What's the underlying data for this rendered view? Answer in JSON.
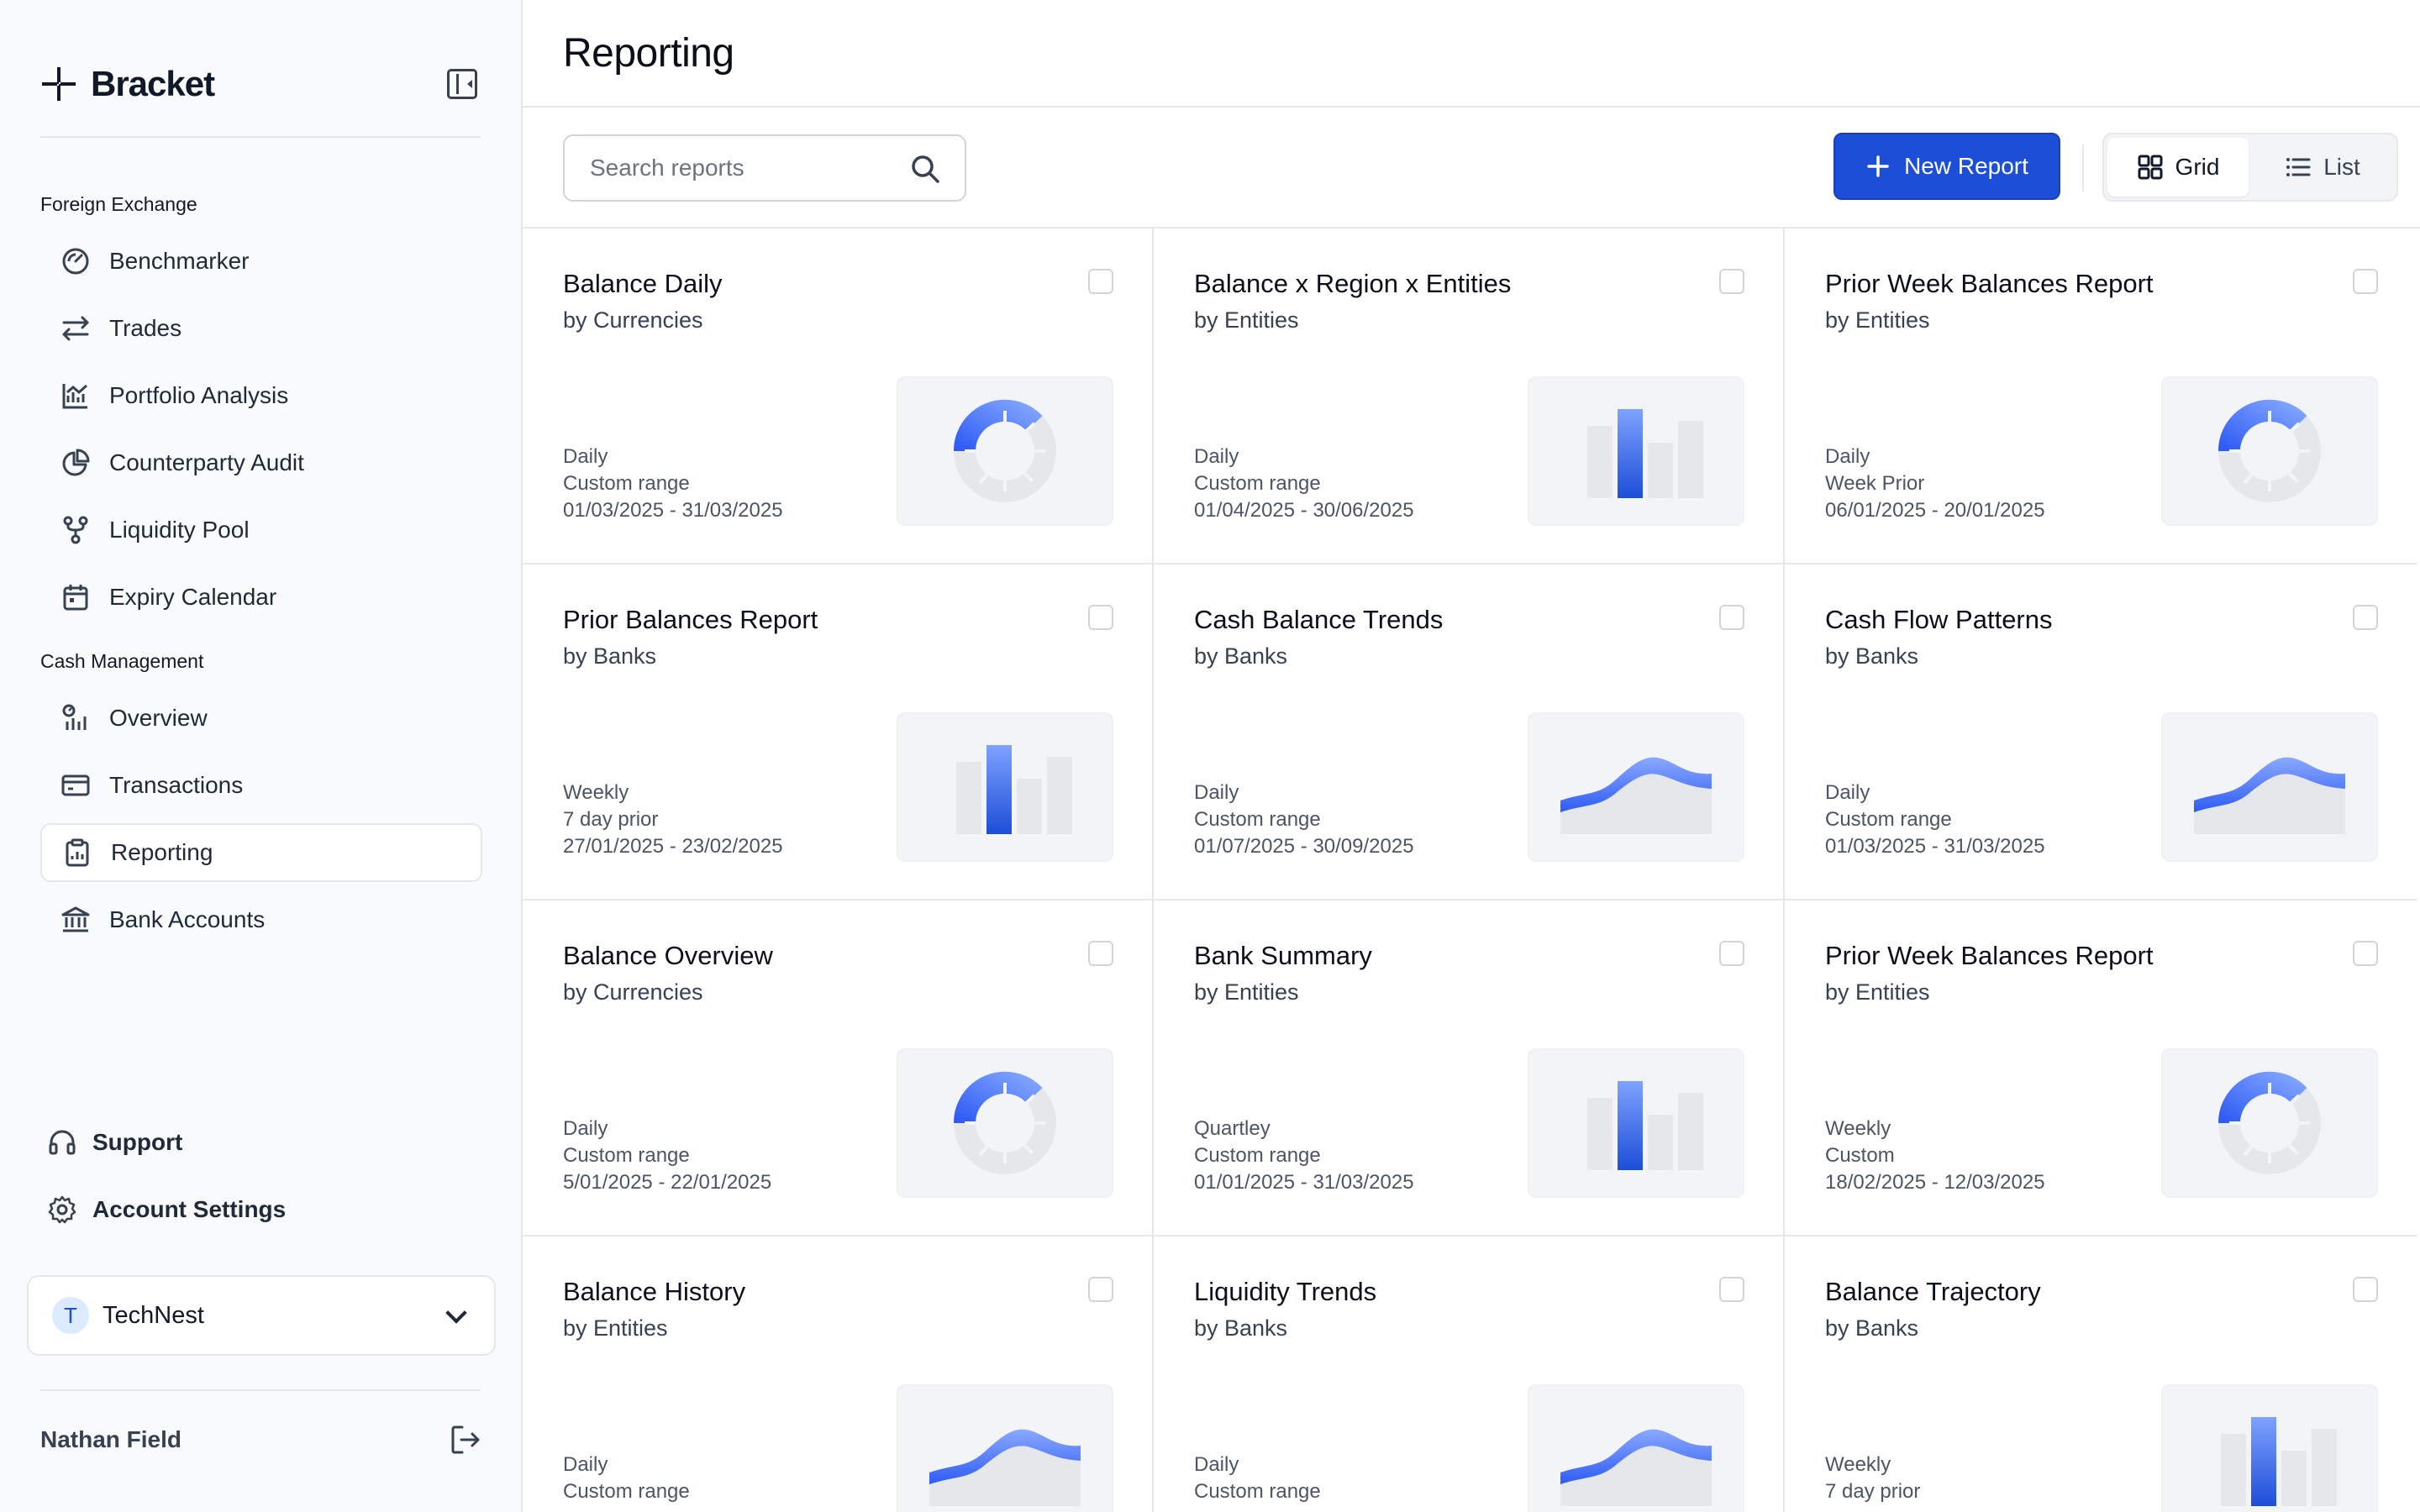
{
  "brand": {
    "name": "Bracket"
  },
  "page": {
    "title": "Reporting"
  },
  "sidebar": {
    "sections": [
      {
        "label": "Foreign Exchange",
        "items": [
          {
            "label": "Benchmarker",
            "icon": "gauge-icon"
          },
          {
            "label": "Trades",
            "icon": "arrows-swap-icon"
          },
          {
            "label": "Portfolio Analysis",
            "icon": "chart-line-icon"
          },
          {
            "label": "Counterparty Audit",
            "icon": "pie-chart-icon"
          },
          {
            "label": "Liquidity Pool",
            "icon": "git-fork-icon"
          },
          {
            "label": "Expiry Calendar",
            "icon": "calendar-icon"
          }
        ]
      },
      {
        "label": "Cash Management",
        "items": [
          {
            "label": "Overview",
            "icon": "overview-icon"
          },
          {
            "label": "Transactions",
            "icon": "card-icon"
          },
          {
            "label": "Reporting",
            "icon": "clipboard-icon",
            "active": true
          },
          {
            "label": "Bank Accounts",
            "icon": "bank-icon"
          }
        ]
      }
    ],
    "support": "Support",
    "account_settings": "Account Settings",
    "org": {
      "initial": "T",
      "name": "TechNest"
    },
    "user": {
      "name": "Nathan Field"
    }
  },
  "toolbar": {
    "search_placeholder": "Search reports",
    "new_report": "New Report",
    "grid_label": "Grid",
    "list_label": "List",
    "view_mode": "Grid"
  },
  "colors": {
    "accent": "#1d4ed8",
    "chart_blue": "#2f5cf5",
    "chart_grey": "#e5e7eb"
  },
  "reports": [
    {
      "title": "Balance Daily",
      "by": "by Currencies",
      "frequency": "Daily",
      "range_type": "Custom range",
      "dates": "01/03/2025 - 31/03/2025",
      "thumb": "donut"
    },
    {
      "title": "Balance x Region x Entities",
      "by": "by Entities",
      "frequency": "Daily",
      "range_type": "Custom range",
      "dates": "01/04/2025 - 30/06/2025",
      "thumb": "bar"
    },
    {
      "title": "Prior Week Balances Report",
      "by": "by Entities",
      "frequency": "Daily",
      "range_type": "Week Prior",
      "dates": "06/01/2025 - 20/01/2025",
      "thumb": "donut"
    },
    {
      "title": "Prior Balances Report",
      "by": "by Banks",
      "frequency": "Weekly",
      "range_type": "7 day prior",
      "dates": "27/01/2025 - 23/02/2025",
      "thumb": "bar"
    },
    {
      "title": "Cash Balance Trends",
      "by": "by Banks",
      "frequency": "Daily",
      "range_type": "Custom range",
      "dates": "01/07/2025 - 30/09/2025",
      "thumb": "area"
    },
    {
      "title": "Cash Flow Patterns",
      "by": "by Banks",
      "frequency": "Daily",
      "range_type": "Custom range",
      "dates": "01/03/2025 - 31/03/2025",
      "thumb": "area"
    },
    {
      "title": "Balance Overview",
      "by": "by Currencies",
      "frequency": "Daily",
      "range_type": "Custom range",
      "dates": "5/01/2025 - 22/01/2025",
      "thumb": "donut"
    },
    {
      "title": "Bank Summary",
      "by": "by Entities",
      "frequency": "Quartley",
      "range_type": "Custom range",
      "dates": "01/01/2025 - 31/03/2025",
      "thumb": "bar"
    },
    {
      "title": "Prior Week Balances Report",
      "by": "by Entities",
      "frequency": "Weekly",
      "range_type": "Custom",
      "dates": "18/02/2025 - 12/03/2025",
      "thumb": "donut"
    },
    {
      "title": "Balance History",
      "by": "by Entities",
      "frequency": "Daily",
      "range_type": "Custom range",
      "dates": "",
      "thumb": "area"
    },
    {
      "title": "Liquidity Trends",
      "by": "by Banks",
      "frequency": "Daily",
      "range_type": "Custom range",
      "dates": "",
      "thumb": "area"
    },
    {
      "title": "Balance Trajectory",
      "by": "by Banks",
      "frequency": "Weekly",
      "range_type": "7 day prior",
      "dates": "",
      "thumb": "bar"
    }
  ]
}
